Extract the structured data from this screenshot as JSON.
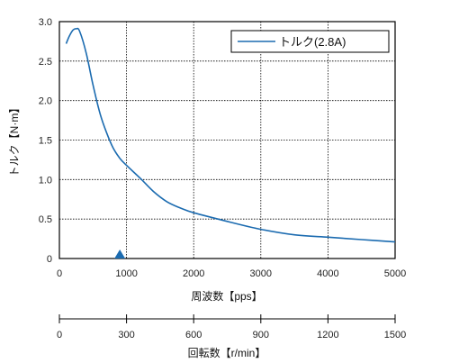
{
  "chart_data": [
    {
      "type": "line",
      "xlabel": "周波数【pps】",
      "ylabel": "トルク【N·m】",
      "xlim": [
        0,
        5000
      ],
      "ylim": [
        0,
        3.0
      ],
      "x_ticks": [
        "0",
        "1000",
        "2000",
        "3000",
        "4000",
        "5000"
      ],
      "y_ticks": [
        "0",
        "0.5",
        "1.0",
        "1.5",
        "2.0",
        "2.5",
        "3.0"
      ],
      "grid": true,
      "legend": "top-right",
      "marker_x": 900,
      "series": [
        {
          "name": "トルク(2.8A)",
          "color": "#1b6bb0",
          "x": [
            100,
            150,
            200,
            250,
            300,
            400,
            500,
            600,
            700,
            800,
            900,
            1000,
            1200,
            1400,
            1600,
            1800,
            2000,
            2500,
            3000,
            3500,
            4000,
            4500,
            5000
          ],
          "y": [
            2.72,
            2.82,
            2.89,
            2.91,
            2.88,
            2.6,
            2.2,
            1.85,
            1.6,
            1.4,
            1.27,
            1.18,
            1.02,
            0.85,
            0.72,
            0.64,
            0.58,
            0.47,
            0.37,
            0.3,
            0.27,
            0.24,
            0.21
          ]
        }
      ]
    },
    {
      "type": "axis",
      "xlabel": "回転数【r/min】",
      "xlim": [
        0,
        1500
      ],
      "x_ticks": [
        "0",
        "300",
        "600",
        "900",
        "1200",
        "1500"
      ]
    }
  ]
}
